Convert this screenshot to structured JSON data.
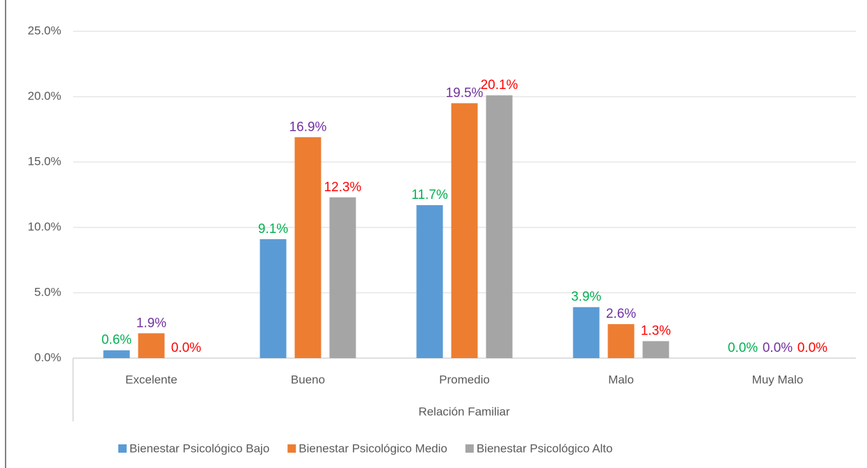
{
  "chart_data": {
    "type": "bar",
    "x_axis_label": "Relación Familiar",
    "categories": [
      "Excelente",
      "Bueno",
      "Promedio",
      "Malo",
      "Muy Malo"
    ],
    "series": [
      {
        "name": "Bienestar Psicológico Bajo",
        "color": "#5b9bd5",
        "label_color": "#00b050",
        "values": [
          0.6,
          9.1,
          11.7,
          3.9,
          0.0
        ],
        "value_labels": [
          "0.6%",
          "9.1%",
          "11.7%",
          "3.9%",
          "0.0%"
        ]
      },
      {
        "name": "Bienestar Psicológico Medio",
        "color": "#ed7d31",
        "label_color": "#7030a0",
        "values": [
          1.9,
          16.9,
          19.5,
          2.6,
          0.0
        ],
        "value_labels": [
          "1.9%",
          "16.9%",
          "19.5%",
          "2.6%",
          "0.0%"
        ]
      },
      {
        "name": "Bienestar Psicológico Alto",
        "color": "#a5a5a5",
        "label_color": "#ff0000",
        "values": [
          0.0,
          12.3,
          20.1,
          1.3,
          0.0
        ],
        "value_labels": [
          "0.0%",
          "12.3%",
          "20.1%",
          "1.3%",
          "0.0%"
        ]
      }
    ],
    "ylim": [
      0,
      25
    ],
    "yticks": [
      {
        "value": 0,
        "label": "0.0%"
      },
      {
        "value": 5,
        "label": "5.0%"
      },
      {
        "value": 10,
        "label": "10.0%"
      },
      {
        "value": 15,
        "label": "15.0%"
      },
      {
        "value": 20,
        "label": "20.0%"
      },
      {
        "value": 25,
        "label": "25.0%"
      }
    ],
    "grid": true,
    "legend": "bottom"
  }
}
